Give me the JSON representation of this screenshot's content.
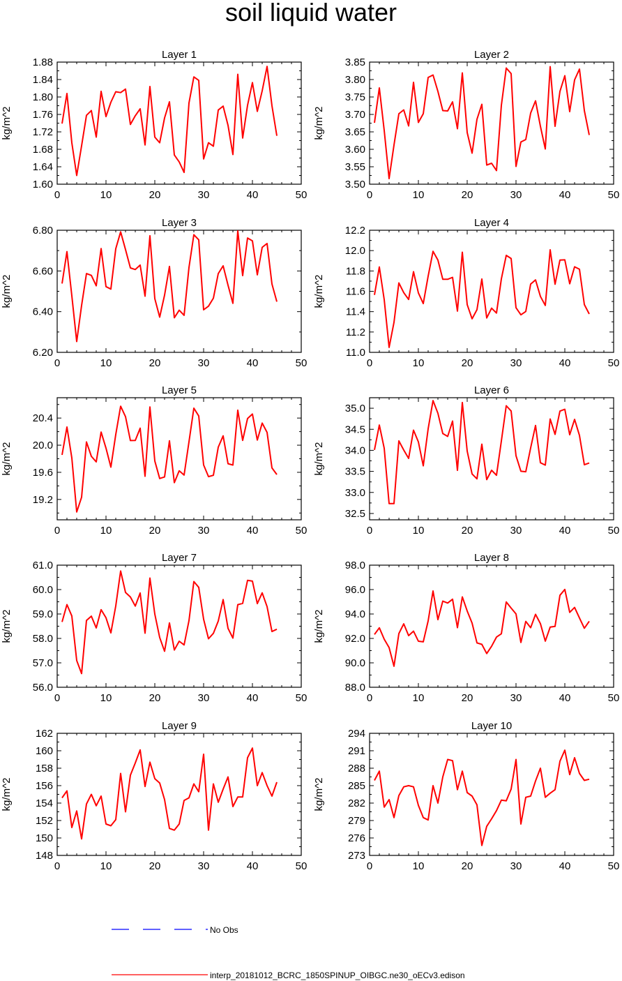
{
  "chart_data": {
    "type": "line",
    "title": "soil liquid water",
    "legend": {
      "placement": "bottom",
      "entries": [
        {
          "label": "No Obs",
          "color": "#0000ff",
          "style": "dashed"
        },
        {
          "label": "interp_20181012_BCRC_1850SPINUP_OIBGC.ne30_oECv3.edison",
          "color": "#ff0000",
          "style": "solid"
        }
      ]
    },
    "series_color": "#ff0000",
    "panels": [
      {
        "title": "Layer 1",
        "ylabel": "kg/m^2",
        "xlim": [
          0,
          50
        ],
        "xticks": [
          0,
          10,
          20,
          30,
          40,
          50
        ],
        "ylim": [
          1.6,
          1.88
        ],
        "yticks": [
          "1.60",
          "1.64",
          "1.68",
          "1.72",
          "1.76",
          "1.80",
          "1.84",
          "1.88"
        ],
        "x": [
          1,
          2,
          3,
          4,
          5,
          6,
          7,
          8,
          9,
          10,
          11,
          12,
          13,
          14,
          15,
          16,
          17,
          18,
          19,
          20,
          21,
          22,
          23,
          24,
          25,
          26,
          27,
          28,
          29,
          30,
          31,
          32,
          33,
          34,
          35,
          36,
          37,
          38,
          39,
          40,
          41,
          42,
          43,
          44,
          45
        ],
        "y": [
          1.739,
          1.808,
          1.695,
          1.62,
          1.688,
          1.758,
          1.769,
          1.708,
          1.813,
          1.755,
          1.788,
          1.812,
          1.81,
          1.818,
          1.737,
          1.757,
          1.773,
          1.69,
          1.824,
          1.708,
          1.695,
          1.752,
          1.789,
          1.667,
          1.651,
          1.627,
          1.786,
          1.846,
          1.838,
          1.658,
          1.695,
          1.687,
          1.77,
          1.779,
          1.735,
          1.668,
          1.852,
          1.706,
          1.781,
          1.833,
          1.767,
          1.814,
          1.87,
          1.78,
          1.711
        ]
      },
      {
        "title": "Layer 2",
        "ylabel": "kg/m^2",
        "xlim": [
          0,
          50
        ],
        "xticks": [
          0,
          10,
          20,
          30,
          40,
          50
        ],
        "ylim": [
          3.5,
          3.85
        ],
        "yticks": [
          "3.50",
          "3.55",
          "3.60",
          "3.65",
          "3.70",
          "3.75",
          "3.80",
          "3.85"
        ],
        "x": [
          1,
          2,
          3,
          4,
          5,
          6,
          7,
          8,
          9,
          10,
          11,
          12,
          13,
          14,
          15,
          16,
          17,
          18,
          19,
          20,
          21,
          22,
          23,
          24,
          25,
          26,
          27,
          28,
          29,
          30,
          31,
          32,
          33,
          34,
          35,
          36,
          37,
          38,
          39,
          40,
          41,
          42,
          43,
          44,
          45
        ],
        "y": [
          3.676,
          3.776,
          3.654,
          3.516,
          3.612,
          3.702,
          3.713,
          3.667,
          3.792,
          3.677,
          3.702,
          3.806,
          3.813,
          3.766,
          3.711,
          3.71,
          3.736,
          3.659,
          3.819,
          3.648,
          3.589,
          3.686,
          3.729,
          3.555,
          3.56,
          3.539,
          3.726,
          3.833,
          3.817,
          3.551,
          3.621,
          3.628,
          3.704,
          3.739,
          3.666,
          3.601,
          3.837,
          3.666,
          3.766,
          3.811,
          3.708,
          3.799,
          3.83,
          3.711,
          3.641
        ]
      },
      {
        "title": "Layer 3",
        "ylabel": "kg/m^2",
        "xlim": [
          0,
          50
        ],
        "xticks": [
          0,
          10,
          20,
          30,
          40,
          50
        ],
        "ylim": [
          6.2,
          6.8
        ],
        "yticks": [
          "6.20",
          "6.40",
          "6.60",
          "6.80"
        ],
        "x": [
          1,
          2,
          3,
          4,
          5,
          6,
          7,
          8,
          9,
          10,
          11,
          12,
          13,
          14,
          15,
          16,
          17,
          18,
          19,
          20,
          21,
          22,
          23,
          24,
          25,
          26,
          27,
          28,
          29,
          30,
          31,
          32,
          33,
          34,
          35,
          36,
          37,
          38,
          39,
          40,
          41,
          42,
          43,
          44,
          45
        ],
        "y": [
          6.538,
          6.695,
          6.478,
          6.253,
          6.43,
          6.587,
          6.578,
          6.527,
          6.71,
          6.523,
          6.511,
          6.709,
          6.792,
          6.705,
          6.615,
          6.607,
          6.629,
          6.476,
          6.773,
          6.464,
          6.373,
          6.481,
          6.622,
          6.37,
          6.407,
          6.382,
          6.617,
          6.778,
          6.753,
          6.409,
          6.427,
          6.466,
          6.587,
          6.625,
          6.53,
          6.441,
          6.797,
          6.577,
          6.762,
          6.748,
          6.581,
          6.716,
          6.735,
          6.536,
          6.449
        ]
      },
      {
        "title": "Layer 4",
        "ylabel": "kg/m^2",
        "xlim": [
          0,
          50
        ],
        "xticks": [
          0,
          10,
          20,
          30,
          40,
          50
        ],
        "ylim": [
          11.0,
          12.2
        ],
        "yticks": [
          "11.0",
          "11.2",
          "11.4",
          "11.6",
          "11.8",
          "12.0",
          "12.2"
        ],
        "x": [
          1,
          2,
          3,
          4,
          5,
          6,
          7,
          8,
          9,
          10,
          11,
          12,
          13,
          14,
          15,
          16,
          17,
          18,
          19,
          20,
          21,
          22,
          23,
          24,
          25,
          26,
          27,
          28,
          29,
          30,
          31,
          32,
          33,
          34,
          35,
          36,
          37,
          38,
          39,
          40,
          41,
          42,
          43,
          44,
          45
        ],
        "y": [
          11.564,
          11.839,
          11.518,
          11.049,
          11.294,
          11.682,
          11.587,
          11.52,
          11.793,
          11.584,
          11.479,
          11.749,
          11.993,
          11.907,
          11.718,
          11.718,
          11.737,
          11.405,
          11.984,
          11.469,
          11.33,
          11.419,
          11.721,
          11.338,
          11.434,
          11.386,
          11.722,
          11.953,
          11.922,
          11.438,
          11.369,
          11.402,
          11.671,
          11.712,
          11.55,
          11.461,
          12.008,
          11.669,
          11.907,
          11.909,
          11.674,
          11.841,
          11.817,
          11.47,
          11.377
        ]
      },
      {
        "title": "Layer 5",
        "ylabel": "kg/m^2",
        "xlim": [
          0,
          50
        ],
        "xticks": [
          0,
          10,
          20,
          30,
          40,
          50
        ],
        "ylim": [
          18.9,
          20.7
        ],
        "yticks": [
          "19.2",
          "19.6",
          "20.0",
          "20.4"
        ],
        "x": [
          1,
          2,
          3,
          4,
          5,
          6,
          7,
          8,
          9,
          10,
          11,
          12,
          13,
          14,
          15,
          16,
          17,
          18,
          19,
          20,
          21,
          22,
          23,
          24,
          25,
          26,
          27,
          28,
          29,
          30,
          31,
          32,
          33,
          34,
          35,
          36,
          37,
          38,
          39,
          40,
          41,
          42,
          43,
          44,
          45
        ],
        "y": [
          19.857,
          20.268,
          19.812,
          19.015,
          19.232,
          20.048,
          19.836,
          19.754,
          20.194,
          19.956,
          19.677,
          20.157,
          20.575,
          20.42,
          20.068,
          20.07,
          20.25,
          19.542,
          20.563,
          19.767,
          19.509,
          19.532,
          20.064,
          19.448,
          19.622,
          19.559,
          20.049,
          20.546,
          20.431,
          19.708,
          19.537,
          19.556,
          19.971,
          20.137,
          19.727,
          19.707,
          20.516,
          20.07,
          20.392,
          20.459,
          20.076,
          20.326,
          20.189,
          19.665,
          19.568
        ]
      },
      {
        "title": "Layer 6",
        "ylabel": "kg/m^2",
        "xlim": [
          0,
          50
        ],
        "xticks": [
          0,
          10,
          20,
          30,
          40,
          50
        ],
        "ylim": [
          32.35,
          35.25
        ],
        "yticks": [
          "32.5",
          "33.0",
          "33.5",
          "34.0",
          "34.5",
          "35.0"
        ],
        "x": [
          1,
          2,
          3,
          4,
          5,
          6,
          7,
          8,
          9,
          10,
          11,
          12,
          13,
          14,
          15,
          16,
          17,
          18,
          19,
          20,
          21,
          22,
          23,
          24,
          25,
          26,
          27,
          28,
          29,
          30,
          31,
          32,
          33,
          34,
          35,
          36,
          37,
          38,
          39,
          40,
          41,
          42,
          43,
          44,
          45
        ],
        "y": [
          34.011,
          34.601,
          34.049,
          32.734,
          32.735,
          34.225,
          34.007,
          33.809,
          34.48,
          34.2,
          33.632,
          34.511,
          35.182,
          34.88,
          34.398,
          34.33,
          34.695,
          33.525,
          35.136,
          33.98,
          33.438,
          33.323,
          34.146,
          33.305,
          33.527,
          33.408,
          34.223,
          35.059,
          34.934,
          33.871,
          33.503,
          33.492,
          34.059,
          34.59,
          33.705,
          33.65,
          34.744,
          34.379,
          34.932,
          34.975,
          34.37,
          34.735,
          34.353,
          33.658,
          33.699
        ]
      },
      {
        "title": "Layer 7",
        "ylabel": "kg/m^2",
        "xlim": [
          0,
          50
        ],
        "xticks": [
          0,
          10,
          20,
          30,
          40,
          50
        ],
        "ylim": [
          56.0,
          61.0
        ],
        "yticks": [
          "56.0",
          "57.0",
          "58.0",
          "59.0",
          "60.0",
          "61.0"
        ],
        "x": [
          1,
          2,
          3,
          4,
          5,
          6,
          7,
          8,
          9,
          10,
          11,
          12,
          13,
          14,
          15,
          16,
          17,
          18,
          19,
          20,
          21,
          22,
          23,
          24,
          25,
          26,
          27,
          28,
          29,
          30,
          31,
          32,
          33,
          34,
          35,
          36,
          37,
          38,
          39,
          40,
          41,
          42,
          43,
          44,
          45
        ],
        "y": [
          58.673,
          59.386,
          58.92,
          57.093,
          56.56,
          58.734,
          58.912,
          58.43,
          59.178,
          58.846,
          58.225,
          59.329,
          60.76,
          59.883,
          59.698,
          59.324,
          59.861,
          58.215,
          60.471,
          58.997,
          58.038,
          57.474,
          58.633,
          57.525,
          57.887,
          57.733,
          58.727,
          60.328,
          60.09,
          58.787,
          57.985,
          58.208,
          58.71,
          59.592,
          58.411,
          58.014,
          59.383,
          59.434,
          60.378,
          60.346,
          59.426,
          59.866,
          59.304,
          58.282,
          58.378
        ]
      },
      {
        "title": "Layer 8",
        "ylabel": "kg/m^2",
        "xlim": [
          0,
          50
        ],
        "xticks": [
          0,
          10,
          20,
          30,
          40,
          50
        ],
        "ylim": [
          88.0,
          98.0
        ],
        "yticks": [
          "88.0",
          "90.0",
          "92.0",
          "94.0",
          "96.0",
          "98.0"
        ],
        "x": [
          1,
          2,
          3,
          4,
          5,
          6,
          7,
          8,
          9,
          10,
          11,
          12,
          13,
          14,
          15,
          16,
          17,
          18,
          19,
          20,
          21,
          22,
          23,
          24,
          25,
          26,
          27,
          28,
          29,
          30,
          31,
          32,
          33,
          34,
          35,
          36,
          37,
          38,
          39,
          40,
          41,
          42,
          43,
          44,
          45
        ],
        "y": [
          92.328,
          92.869,
          91.939,
          91.254,
          89.718,
          92.392,
          93.194,
          92.226,
          92.592,
          91.774,
          91.719,
          93.434,
          95.884,
          93.538,
          95.059,
          94.896,
          95.21,
          92.882,
          95.4,
          94.247,
          93.258,
          91.634,
          91.516,
          90.761,
          91.361,
          92.111,
          92.381,
          94.988,
          94.487,
          94.005,
          91.669,
          93.397,
          92.88,
          93.971,
          93.213,
          91.779,
          92.926,
          92.986,
          95.529,
          96.012,
          94.131,
          94.536,
          93.677,
          92.836,
          93.406
        ]
      },
      {
        "title": "Layer 9",
        "ylabel": "kg/m^2",
        "xlim": [
          0,
          50
        ],
        "xticks": [
          0,
          10,
          20,
          30,
          40,
          50
        ],
        "ylim": [
          148,
          162
        ],
        "yticks": [
          "148",
          "150",
          "152",
          "154",
          "156",
          "158",
          "160",
          "162"
        ],
        "x": [
          1,
          2,
          3,
          4,
          5,
          6,
          7,
          8,
          9,
          10,
          11,
          12,
          13,
          14,
          15,
          16,
          17,
          18,
          19,
          20,
          21,
          22,
          23,
          24,
          25,
          26,
          27,
          28,
          29,
          30,
          31,
          32,
          33,
          34,
          35,
          36,
          37,
          38,
          39,
          40,
          41,
          42,
          43,
          44,
          45
        ],
        "y": [
          154.6,
          155.4,
          151.2,
          153.1,
          149.9,
          153.9,
          155.0,
          153.7,
          154.8,
          151.6,
          151.4,
          152.1,
          157.4,
          153.0,
          157.2,
          158.6,
          160.1,
          155.9,
          158.7,
          156.8,
          156.3,
          154.4,
          151.1,
          150.9,
          151.6,
          154.3,
          154.6,
          156.2,
          155.3,
          159.6,
          150.9,
          156.2,
          154.1,
          155.6,
          157.0,
          153.6,
          154.7,
          154.7,
          159.2,
          160.3,
          156.0,
          157.5,
          156.0,
          154.8,
          156.4
        ]
      },
      {
        "title": "Layer 10",
        "ylabel": "kg/m^2",
        "xlim": [
          0,
          50
        ],
        "xticks": [
          0,
          10,
          20,
          30,
          40,
          50
        ],
        "ylim": [
          273,
          294
        ],
        "yticks": [
          "273",
          "276",
          "279",
          "282",
          "285",
          "288",
          "291",
          "294"
        ],
        "x": [
          1,
          2,
          3,
          4,
          5,
          6,
          7,
          8,
          9,
          10,
          11,
          12,
          13,
          14,
          15,
          16,
          17,
          18,
          19,
          20,
          21,
          22,
          23,
          24,
          25,
          26,
          27,
          28,
          29,
          30,
          31,
          32,
          33,
          34,
          35,
          36,
          37,
          38,
          39,
          40,
          41,
          42,
          43,
          44,
          45
        ],
        "y": [
          285.9,
          287.5,
          281.3,
          282.6,
          279.5,
          283.3,
          284.8,
          285.0,
          284.8,
          281.6,
          279.5,
          279.1,
          285.0,
          282.0,
          286.5,
          289.5,
          289.3,
          284.3,
          287.5,
          283.8,
          283.2,
          281.7,
          274.7,
          278.0,
          279.3,
          280.7,
          282.5,
          282.4,
          284.4,
          289.5,
          278.4,
          283.0,
          283.2,
          285.8,
          288.0,
          283.0,
          283.7,
          284.3,
          289.2,
          291.1,
          286.9,
          289.8,
          287.1,
          285.9,
          286.1
        ]
      }
    ]
  }
}
